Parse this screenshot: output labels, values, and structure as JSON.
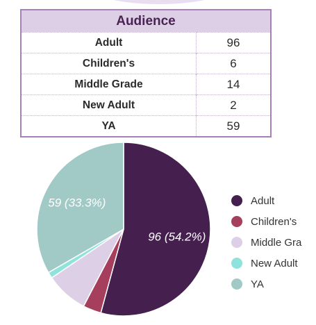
{
  "table": {
    "title": "Audience",
    "rows": [
      {
        "label": "Adult",
        "value": "96"
      },
      {
        "label": "Children's",
        "value": "6"
      },
      {
        "label": "Middle Grade",
        "value": "14"
      },
      {
        "label": "New Adult",
        "value": "2"
      },
      {
        "label": "YA",
        "value": "59"
      }
    ]
  },
  "chart_data": {
    "type": "pie",
    "categories": [
      "Adult",
      "Children's",
      "Middle Grade",
      "New Adult",
      "YA"
    ],
    "values": [
      96,
      6,
      14,
      2,
      59
    ],
    "slice_labels": [
      "96 (54.2%)",
      "",
      "",
      "",
      "59 (33.3%)"
    ],
    "legend_labels": [
      "Adult",
      "Children's",
      "Middle Gra",
      "New Adult",
      "YA"
    ],
    "colors": [
      "#45204f",
      "#a63e5d",
      "#ddd0e6",
      "#8fe3dc",
      "#a1cac6"
    ],
    "legend_position": "right"
  }
}
